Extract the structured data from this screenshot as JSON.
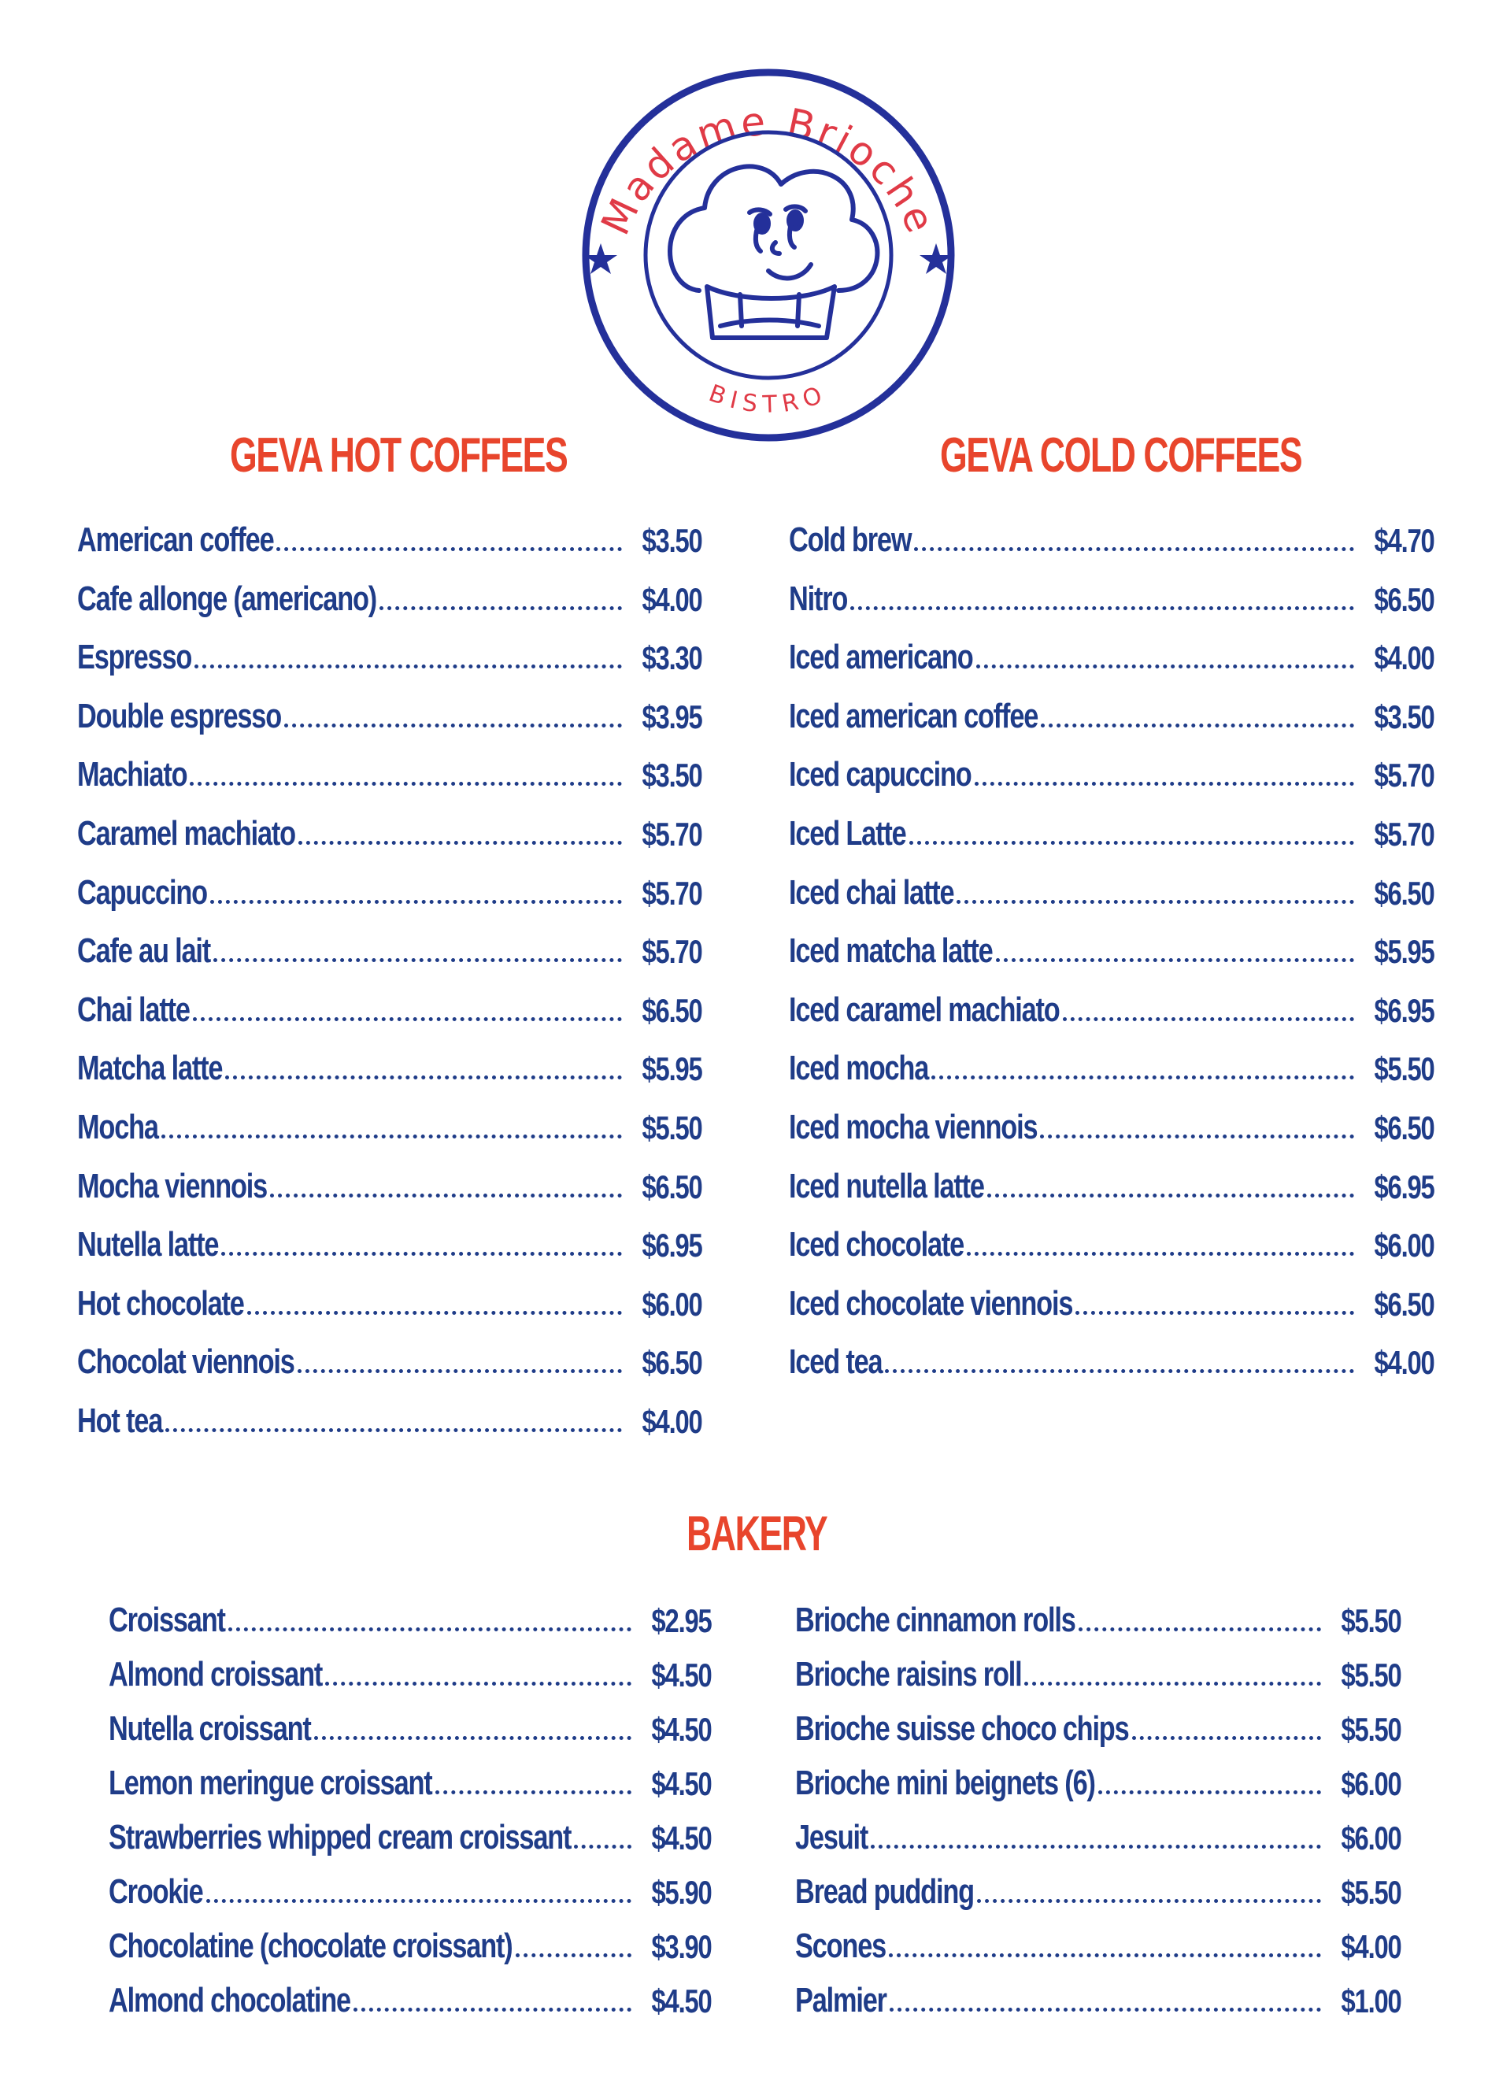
{
  "brand": {
    "name": "Madame Brioche",
    "subtitle": "BISTRO"
  },
  "colors": {
    "heading": "#e8452c",
    "text": "#1f3c88",
    "logo_blue": "#24309a",
    "logo_red": "#e03a46"
  },
  "hot_coffees": {
    "title": "GEVA HOT COFFEES",
    "items": [
      {
        "name": "American coffee",
        "price": "$3.50"
      },
      {
        "name": "Cafe allonge (americano)",
        "price": "$4.00"
      },
      {
        "name": "Espresso",
        "price": "$3.30"
      },
      {
        "name": "Double espresso",
        "price": "$3.95"
      },
      {
        "name": "Machiato",
        "price": "$3.50"
      },
      {
        "name": "Caramel machiato",
        "price": "$5.70"
      },
      {
        "name": "Capuccino",
        "price": "$5.70"
      },
      {
        "name": "Cafe au lait",
        "price": "$5.70"
      },
      {
        "name": "Chai latte",
        "price": "$6.50"
      },
      {
        "name": "Matcha latte",
        "price": "$5.95"
      },
      {
        "name": "Mocha",
        "price": "$5.50"
      },
      {
        "name": "Mocha viennois",
        "price": "$6.50"
      },
      {
        "name": "Nutella latte",
        "price": "$6.95"
      },
      {
        "name": "Hot chocolate",
        "price": "$6.00"
      },
      {
        "name": "Chocolat viennois",
        "price": "$6.50"
      },
      {
        "name": "Hot tea",
        "price": "$4.00"
      }
    ]
  },
  "cold_coffees": {
    "title": "GEVA COLD COFFEES",
    "items": [
      {
        "name": "Cold brew",
        "price": "$4.70"
      },
      {
        "name": "Nitro",
        "price": "$6.50"
      },
      {
        "name": "Iced americano",
        "price": "$4.00"
      },
      {
        "name": "Iced american coffee",
        "price": "$3.50"
      },
      {
        "name": "Iced capuccino",
        "price": "$5.70"
      },
      {
        "name": "Iced Latte",
        "price": "$5.70"
      },
      {
        "name": "Iced chai latte",
        "price": "$6.50"
      },
      {
        "name": "Iced matcha latte",
        "price": "$5.95"
      },
      {
        "name": "Iced caramel machiato",
        "price": "$6.95"
      },
      {
        "name": "Iced mocha",
        "price": "$5.50"
      },
      {
        "name": "Iced mocha viennois",
        "price": "$6.50"
      },
      {
        "name": "Iced nutella latte",
        "price": "$6.95"
      },
      {
        "name": "Iced chocolate",
        "price": "$6.00"
      },
      {
        "name": "Iced chocolate viennois",
        "price": "$6.50"
      },
      {
        "name": "Iced tea",
        "price": "$4.00"
      }
    ]
  },
  "bakery": {
    "title": "BAKERY",
    "left_items": [
      {
        "name": "Croissant",
        "price": "$2.95"
      },
      {
        "name": "Almond croissant",
        "price": "$4.50"
      },
      {
        "name": "Nutella croissant",
        "price": "$4.50"
      },
      {
        "name": "Lemon meringue croissant",
        "price": "$4.50"
      },
      {
        "name": "Strawberries whipped cream croissant",
        "price": "$4.50"
      },
      {
        "name": "Crookie",
        "price": "$5.90"
      },
      {
        "name": "Chocolatine (chocolate croissant)",
        "price": "$3.90"
      },
      {
        "name": "Almond chocolatine",
        "price": "$4.50"
      }
    ],
    "right_items": [
      {
        "name": "Brioche cinnamon rolls",
        "price": "$5.50"
      },
      {
        "name": "Brioche raisins roll",
        "price": "$5.50"
      },
      {
        "name": "Brioche suisse choco chips",
        "price": "$5.50"
      },
      {
        "name": "Brioche mini beignets (6)",
        "price": "$6.00"
      },
      {
        "name": "Jesuit",
        "price": "$6.00"
      },
      {
        "name": "Bread pudding",
        "price": "$5.50"
      },
      {
        "name": "Scones",
        "price": "$4.00"
      },
      {
        "name": "Palmier",
        "price": "$1.00"
      }
    ]
  }
}
